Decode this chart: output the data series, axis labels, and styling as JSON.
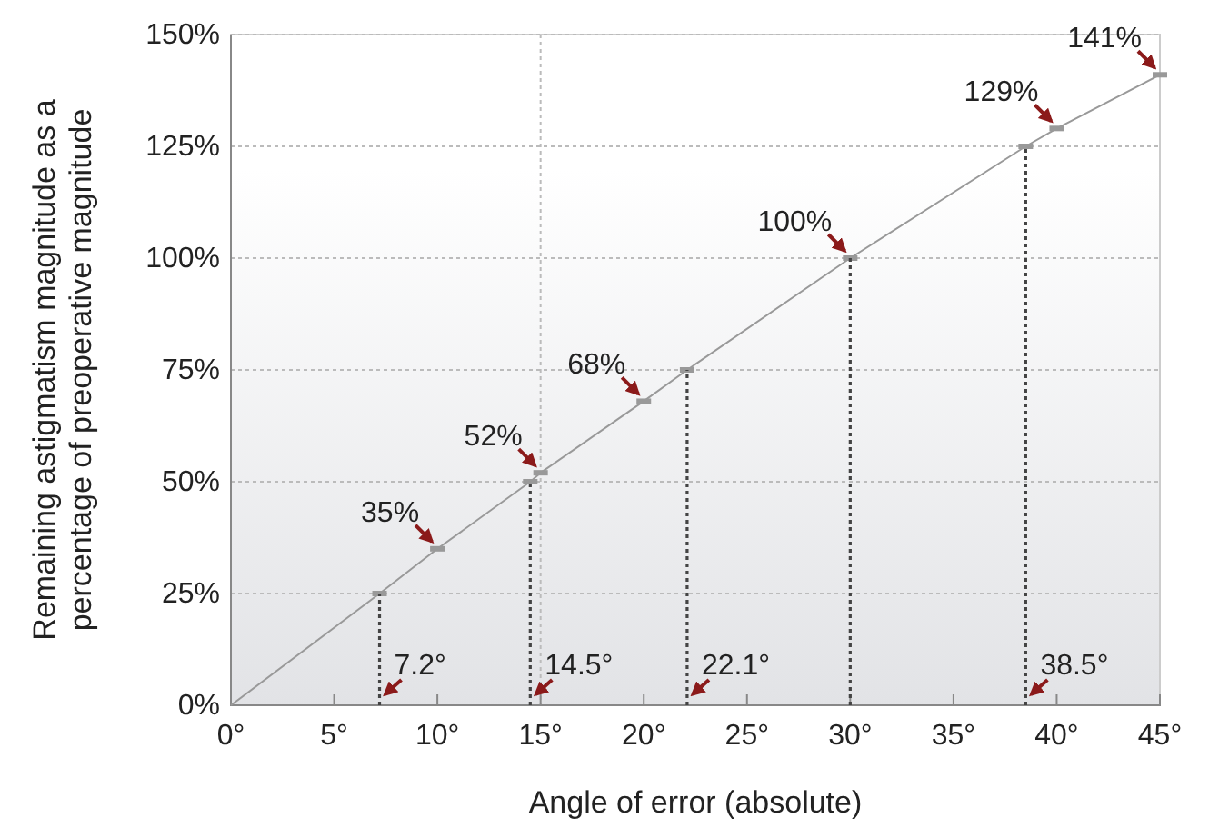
{
  "chart_data": {
    "type": "line",
    "xlabel": "Angle of error (absolute)",
    "ylabel": "Remaining astigmatism magnitude as a\npercentage of preoperative magnitude",
    "xlim": [
      0,
      45
    ],
    "xticks": [
      {
        "value": 0,
        "label": "0°"
      },
      {
        "value": 5,
        "label": "5°"
      },
      {
        "value": 10,
        "label": "10°"
      },
      {
        "value": 15,
        "label": "15°"
      },
      {
        "value": 20,
        "label": "20°"
      },
      {
        "value": 25,
        "label": "25°"
      },
      {
        "value": 30,
        "label": "30°"
      },
      {
        "value": 35,
        "label": "35°"
      },
      {
        "value": 40,
        "label": "40°"
      },
      {
        "value": 45,
        "label": "45°"
      }
    ],
    "ylim": [
      0,
      150
    ],
    "yticks": [
      {
        "value": 0,
        "label": "0%"
      },
      {
        "value": 25,
        "label": "25%"
      },
      {
        "value": 50,
        "label": "50%"
      },
      {
        "value": 75,
        "label": "75%"
      },
      {
        "value": 100,
        "label": "100%"
      },
      {
        "value": 125,
        "label": "125%"
      },
      {
        "value": 150,
        "label": "150%"
      }
    ],
    "grid": "y",
    "marker": "square",
    "line_style": "solid",
    "ref_lines": [
      {
        "axis": "x",
        "value": 15,
        "color": "#bbbbbb",
        "line_style": "dotted"
      }
    ],
    "series": [
      {
        "color": "#999999",
        "x": [
          0,
          7.2,
          10,
          14.5,
          15,
          20,
          22.1,
          30,
          38.5,
          40,
          45
        ],
        "values": [
          0,
          25,
          35,
          50,
          52,
          68,
          75,
          100,
          125,
          129,
          141
        ]
      },
      {
        "color": "#444444",
        "x": [
          7.2,
          7.2
        ],
        "values": [
          0,
          25
        ],
        "line_style": "dotted",
        "marker": "none"
      },
      {
        "color": "#444444",
        "x": [
          14.5,
          14.5
        ],
        "values": [
          0,
          50
        ],
        "line_style": "dotted",
        "marker": "none"
      },
      {
        "color": "#444444",
        "x": [
          22.1,
          22.1
        ],
        "values": [
          0,
          75
        ],
        "line_style": "dotted",
        "marker": "none"
      },
      {
        "color": "#444444",
        "x": [
          30,
          30
        ],
        "values": [
          0,
          100
        ],
        "line_style": "dotted",
        "marker": "none"
      },
      {
        "color": "#444444",
        "x": [
          38.5,
          38.5
        ],
        "values": [
          0,
          125
        ],
        "line_style": "dotted",
        "marker": "none"
      }
    ],
    "annotations": [
      {
        "text": "35%",
        "x": 10,
        "y": 35
      },
      {
        "text": "52%",
        "x": 15,
        "y": 52
      },
      {
        "text": "68%",
        "x": 20,
        "y": 68
      },
      {
        "text": "100%",
        "x": 30,
        "y": 100
      },
      {
        "text": "129%",
        "x": 40,
        "y": 129
      },
      {
        "text": "141%",
        "x": 45,
        "y": 141
      },
      {
        "text": "7.2°",
        "x": 7.2,
        "y": 0
      },
      {
        "text": "14.5°",
        "x": 14.5,
        "y": 0
      },
      {
        "text": "22.1°",
        "x": 22.1,
        "y": 0
      },
      {
        "text": "38.5°",
        "x": 38.5,
        "y": 0
      }
    ]
  }
}
